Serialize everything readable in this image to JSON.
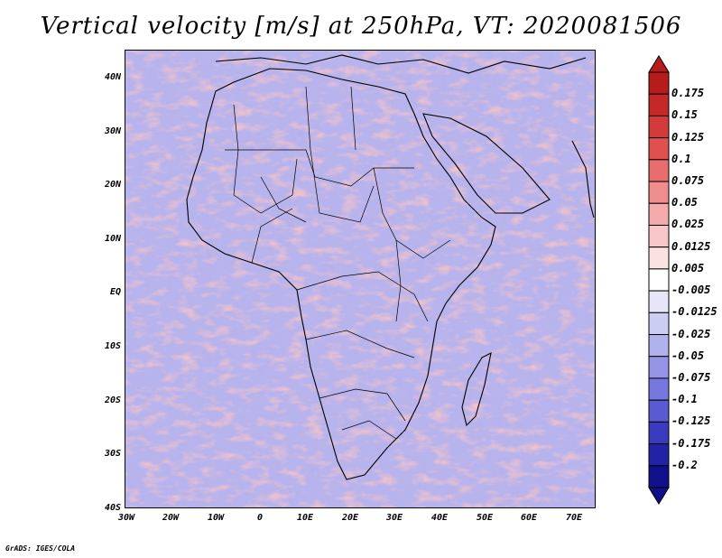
{
  "title": "Vertical velocity [m/s] at 250hPa, VT: 2020081506",
  "footer": "GrADS: IGES/COLA",
  "lat_labels": [
    "40N",
    "30N",
    "20N",
    "10N",
    "EQ",
    "10S",
    "20S",
    "30S",
    "40S"
  ],
  "lon_labels": [
    "30W",
    "20W",
    "10W",
    "0",
    "10E",
    "20E",
    "30E",
    "40E",
    "50E",
    "60E",
    "70E"
  ],
  "colorbar": {
    "labels": [
      "0.175",
      "0.15",
      "0.125",
      "0.1",
      "0.075",
      "0.05",
      "0.025",
      "0.0125",
      "0.005",
      "-0.005",
      "-0.0125",
      "-0.025",
      "-0.05",
      "-0.075",
      "-0.1",
      "-0.125",
      "-0.175",
      "-0.2"
    ],
    "colors": [
      "#b71c1c",
      "#c62828",
      "#d33a3a",
      "#e05050",
      "#e86e6e",
      "#ef8c8c",
      "#f4abab",
      "#f8c8c8",
      "#fbe2e2",
      "#ffffff",
      "#e6e6f8",
      "#cccdf3",
      "#b0b1ed",
      "#9495e5",
      "#7778dd",
      "#5a5bd2",
      "#3a3bbf",
      "#2222a6",
      "#10108a"
    ]
  }
}
